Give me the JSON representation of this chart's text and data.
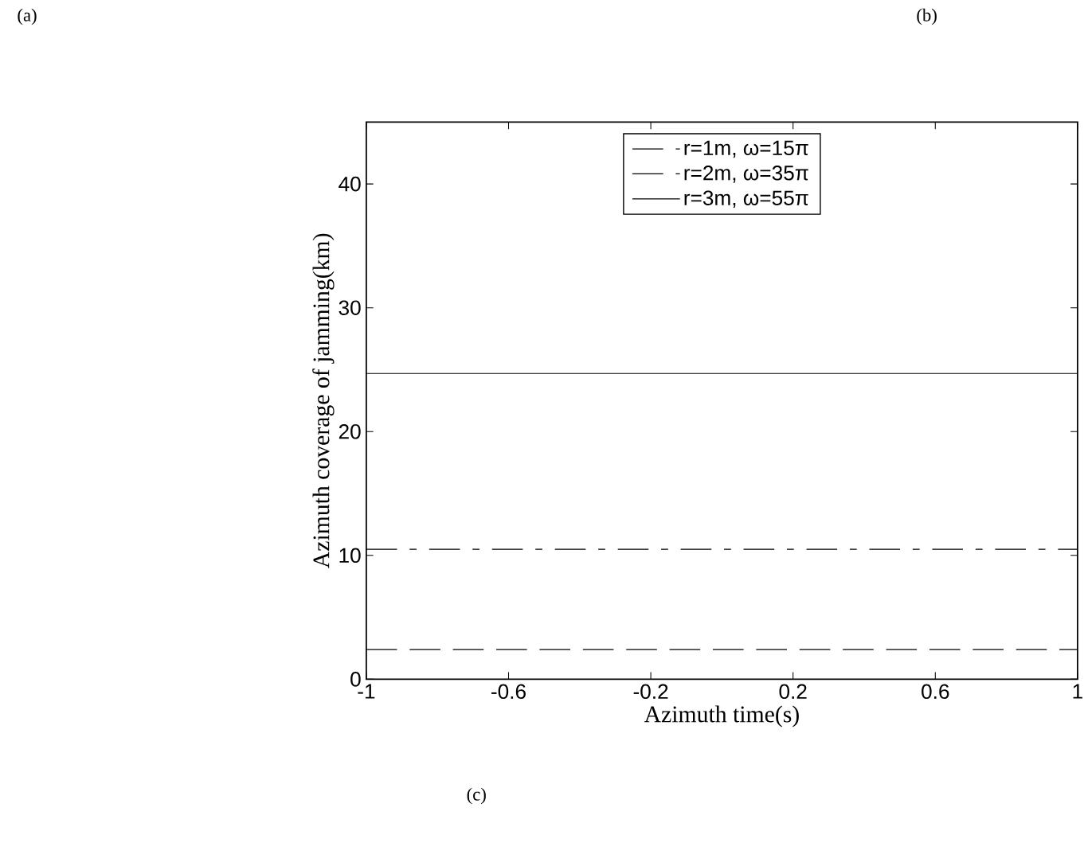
{
  "chart_data": {
    "type": "line",
    "xlabel": "Azimuth time(s)",
    "ylabel": "Azimuth coverage of jamming(km)",
    "x": [
      -1,
      1
    ],
    "series": [
      {
        "name": "r=1m, ω=15π",
        "color": "#000000",
        "line_style": "dashed",
        "values": [
          2.4,
          2.4
        ]
      },
      {
        "name": "r=2m, ω=35π",
        "color": "#000000",
        "line_style": "dashdot",
        "values": [
          10.5,
          10.5
        ]
      },
      {
        "name": "r=3m, ω=55π",
        "color": "#000000",
        "line_style": "solid",
        "values": [
          24.7,
          24.7
        ]
      }
    ],
    "xlim": [
      -1,
      1
    ],
    "ylim": [
      0,
      45
    ],
    "xticks": [
      -1,
      -0.6,
      -0.2,
      0.2,
      0.6,
      1
    ],
    "yticks": [
      0,
      10,
      20,
      30,
      40
    ],
    "legend": "top",
    "grid": false,
    "marker": "none",
    "annotations": [
      "(a)",
      "(b)",
      "(c)"
    ]
  }
}
